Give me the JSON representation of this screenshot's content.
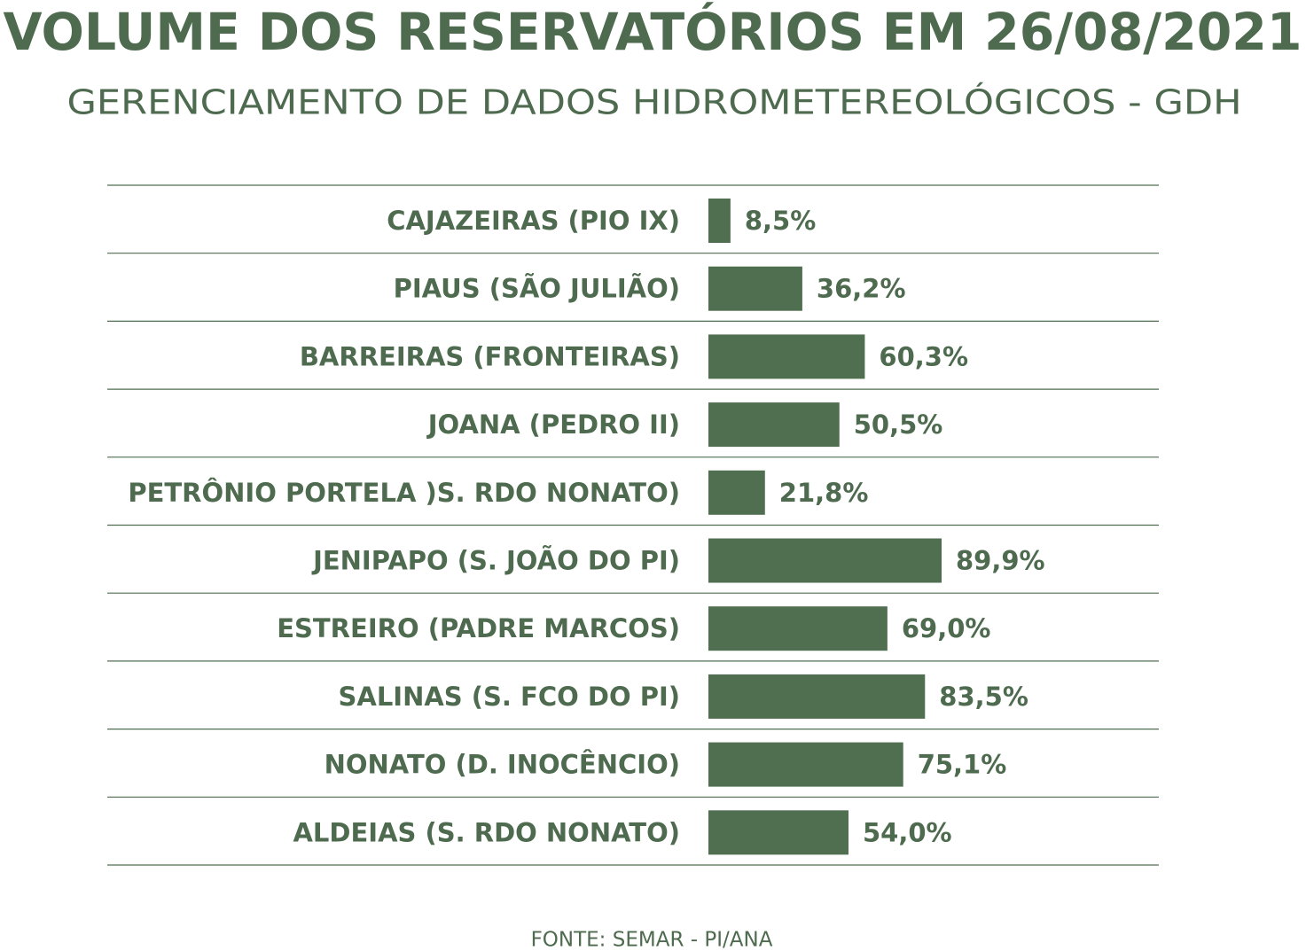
{
  "chart_data": {
    "type": "bar",
    "orientation": "horizontal",
    "title": "VOLUME DOS RESERVATÓRIOS EM 26/08/2021",
    "subtitle": "GERENCIAMENTO DE DADOS HIDROMETEREOLÓGICOS - GDH",
    "source": "FONTE: SEMAR - PI/ANA",
    "color": "#506e50",
    "categories": [
      "CAJAZEIRAS (PIO IX)",
      "PIAUS (SÃO JULIÃO)",
      "BARREIRAS (FRONTEIRAS)",
      "JOANA (PEDRO II)",
      "PETRÔNIO PORTELA )S. RDO NONATO)",
      "JENIPAPO (S. JOÃO DO PI)",
      "ESTREIRO (PADRE MARCOS)",
      "SALINAS (S. FCO DO PI)",
      "NONATO (D. INOCÊNCIO)",
      "ALDEIAS (S. RDO NONATO)"
    ],
    "values": [
      8.5,
      36.2,
      60.3,
      50.5,
      21.8,
      89.9,
      69.0,
      83.5,
      75.1,
      54.0
    ],
    "value_labels": [
      "8,5%",
      "36,2%",
      "60,3%",
      "50,5%",
      "21,8%",
      "89,9%",
      "69,0%",
      "83,5%",
      "75,1%",
      "54,0%"
    ]
  }
}
